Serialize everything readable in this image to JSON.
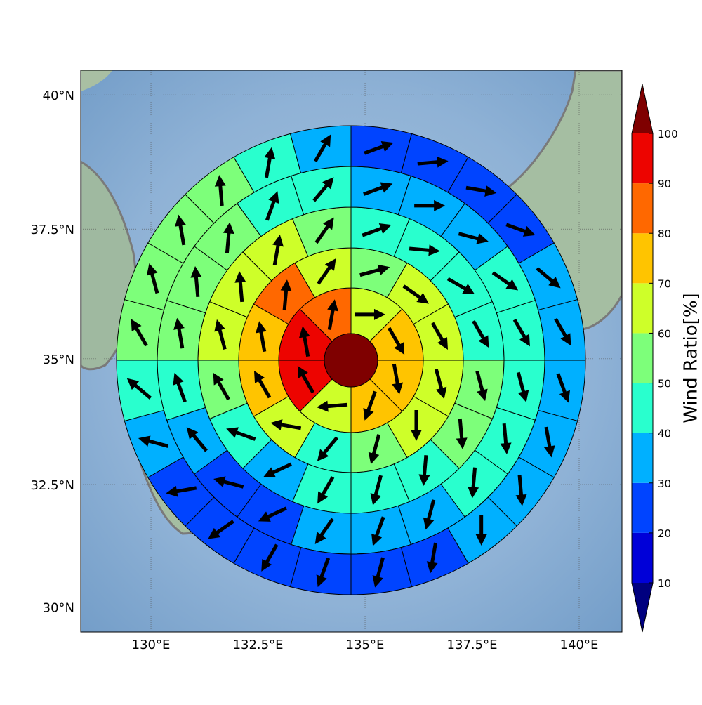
{
  "chart_data": {
    "type": "wind_rose_map",
    "projection": "mercator",
    "xlim": [
      128.36,
      141.0
    ],
    "ylim": [
      29.48,
      40.45
    ],
    "xticks": [
      {
        "value": 130,
        "label": "130°E"
      },
      {
        "value": 132.5,
        "label": "132.5°E"
      },
      {
        "value": 135,
        "label": "135°E"
      },
      {
        "value": 137.5,
        "label": "137.5°E"
      },
      {
        "value": 140,
        "label": "140°E"
      }
    ],
    "yticks": [
      {
        "value": 30,
        "label": "30°N"
      },
      {
        "value": 32.5,
        "label": "32.5°N"
      },
      {
        "value": 35,
        "label": "35°N"
      },
      {
        "value": 37.5,
        "label": "37.5°N"
      },
      {
        "value": 40,
        "label": "40°N"
      }
    ],
    "grid": true,
    "colorbar_label": "Wind Ratio[%]",
    "levels": [
      10,
      20,
      30,
      40,
      50,
      60,
      70,
      80,
      90,
      100
    ],
    "colors": [
      "#00007f",
      "#0000d8",
      "#0044ff",
      "#00b0ff",
      "#29ffce",
      "#7dff7a",
      "#ceff29",
      "#ffc400",
      "#ff6800",
      "#ed0400",
      "#7f0000"
    ],
    "center": {
      "value": 105
    },
    "rings": [
      {
        "values": [
          65,
          75,
          75,
          75,
          65,
          95,
          95,
          85
        ],
        "directions": [
          90,
          150,
          170,
          200,
          265,
          330,
          350,
          10
        ]
      },
      {
        "values": [
          55,
          65,
          65,
          65,
          65,
          55,
          45,
          65,
          75,
          75,
          85,
          65
        ],
        "directions": [
          75,
          125,
          150,
          165,
          180,
          195,
          220,
          280,
          330,
          350,
          5,
          35
        ]
      },
      {
        "values": [
          45,
          45,
          45,
          45,
          55,
          55,
          45,
          45,
          45,
          35,
          45,
          55,
          65,
          65,
          65,
          55
        ],
        "directions": [
          70,
          95,
          120,
          150,
          165,
          175,
          185,
          195,
          210,
          245,
          290,
          330,
          345,
          355,
          10,
          35
        ]
      },
      {
        "values": [
          35,
          35,
          35,
          45,
          45,
          45,
          45,
          45,
          35,
          35,
          35,
          25,
          25,
          35,
          45,
          55,
          55,
          55,
          45,
          45
        ],
        "directions": [
          70,
          90,
          105,
          125,
          150,
          165,
          175,
          185,
          195,
          200,
          215,
          245,
          285,
          320,
          340,
          350,
          355,
          5,
          20,
          40
        ]
      },
      {
        "values": [
          25,
          25,
          25,
          25,
          35,
          35,
          35,
          35,
          35,
          35,
          25,
          25,
          25,
          25,
          25,
          25,
          35,
          45,
          55,
          55,
          55,
          55,
          45,
          35
        ],
        "directions": [
          70,
          85,
          100,
          110,
          130,
          150,
          160,
          170,
          175,
          180,
          190,
          195,
          200,
          210,
          235,
          260,
          285,
          310,
          330,
          345,
          350,
          355,
          10,
          30
        ]
      }
    ]
  }
}
